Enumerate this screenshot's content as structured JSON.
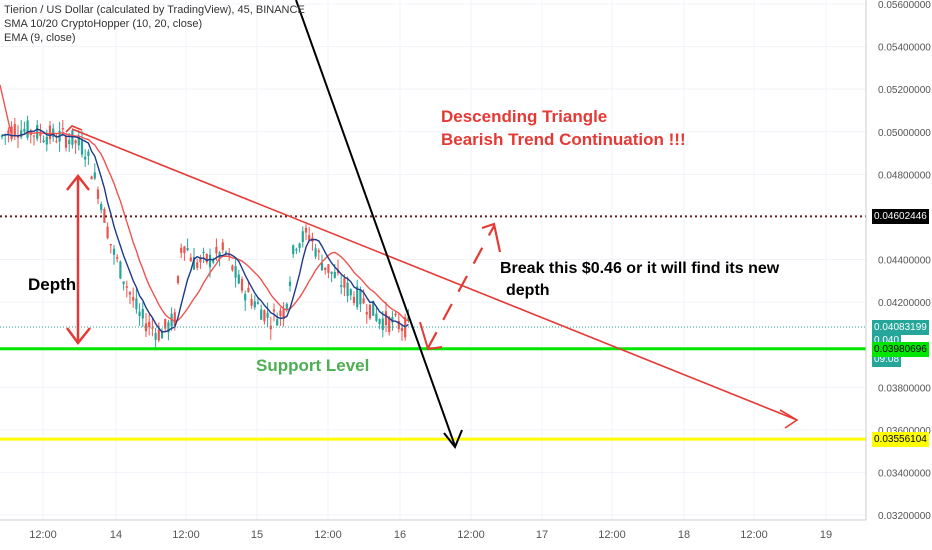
{
  "legend": {
    "symbol": "Tierion / US Dollar (calculated by TradingView), 45, BINANCE",
    "sma": "SMA 10/20 CryptoHopper (10, 20, close)",
    "ema": "EMA (9, close)"
  },
  "annotations": {
    "title_line1": "Descending Triangle",
    "title_line2": "Bearish Trend Continuation !!!",
    "depth": "Depth",
    "break_line1": "Break this $0.46 or it will find its new",
    "break_line2": "depth",
    "support": "Support Level"
  },
  "chart_data": {
    "type": "candlestick",
    "y_ticks": [
      "0.05600000",
      "0.05400000",
      "0.05200000",
      "0.05000000",
      "0.04800000",
      "0.04400000",
      "0.04200000",
      "0.03800000",
      "0.03600000",
      "0.03400000",
      "0.03200000"
    ],
    "x_ticks": [
      "12:00",
      "14",
      "12:00",
      "15",
      "12:00",
      "16",
      "12:00",
      "17",
      "12:00",
      "18",
      "12:00",
      "19"
    ],
    "price_tags": [
      {
        "label": "0.04602446",
        "value": 0.04602446,
        "bg": "#000000",
        "fg": "#ffffff"
      },
      {
        "label": "0.04083199",
        "value": 0.04083199,
        "bg": "#26a69a",
        "fg": "#ffffff"
      },
      {
        "label": "0.040",
        "value": 0.0402,
        "bg": "#26a69a",
        "fg": "#ffffff"
      },
      {
        "label": "09:08",
        "value": 0.03935,
        "bg": "#26a69a",
        "fg": "#ffffff"
      },
      {
        "label": "0.03980696",
        "value": 0.03980696,
        "bg": "#00e600",
        "fg": "#000000"
      },
      {
        "label": "0.03556104",
        "value": 0.03556104,
        "bg": "#ffff00",
        "fg": "#000000"
      }
    ],
    "levels": {
      "resistance": 0.04602446,
      "support": 0.03980696,
      "target": 0.03556104,
      "current": 0.04083199
    },
    "ylim": [
      0.0318,
      0.0561
    ]
  },
  "colors": {
    "up": "#26a69a",
    "down": "#ef5350",
    "sma": "#ef5350",
    "ema": "#1e3a8a",
    "support": "#00e600",
    "target": "#ffff00",
    "annot": "#e53935",
    "green_text": "#4caf50"
  }
}
